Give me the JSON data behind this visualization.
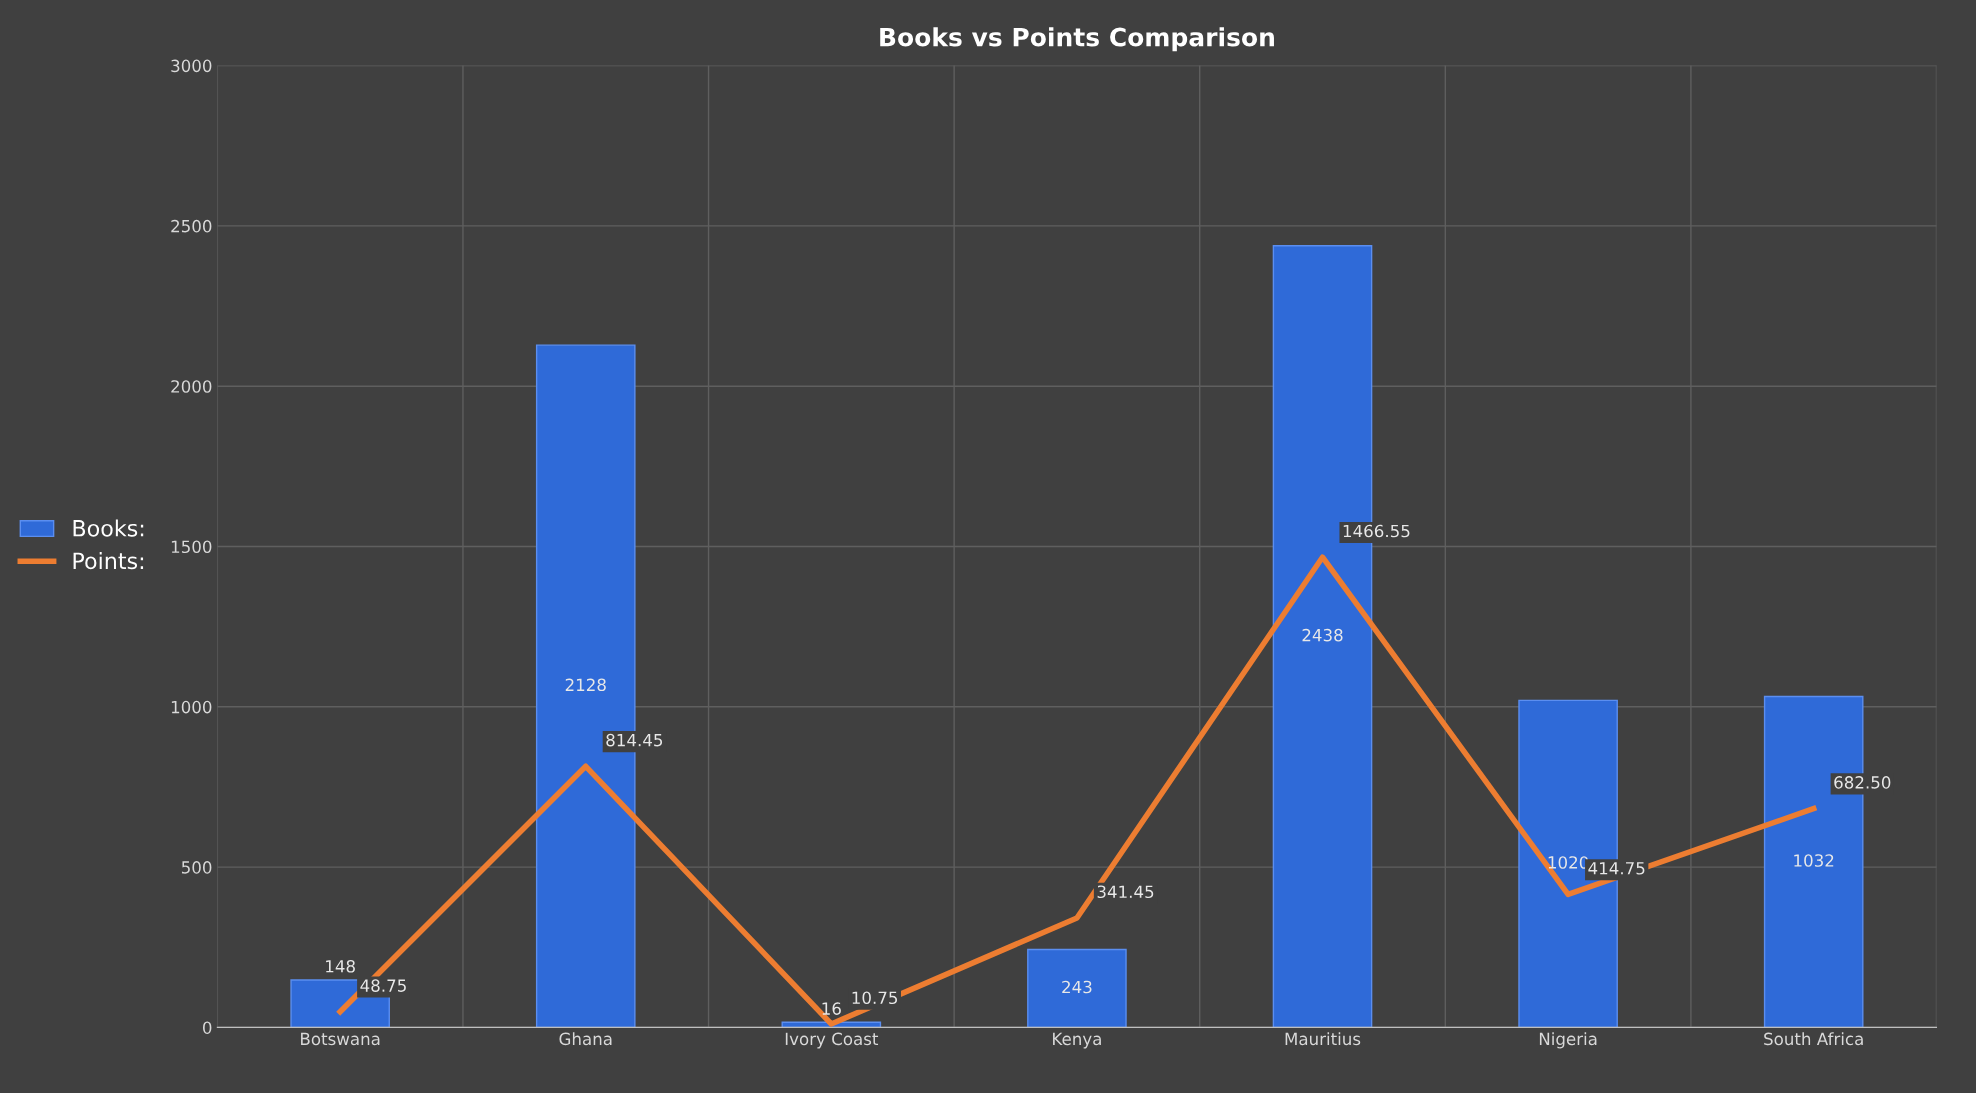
{
  "chart_data": {
    "type": "bar",
    "title": "Books vs Points Comparison",
    "categories": [
      "Botswana",
      "Ghana",
      "Ivory Coast",
      "Kenya",
      "Mauritius",
      "Nigeria",
      "South Africa"
    ],
    "series": [
      {
        "name": "Books:",
        "color": "#2f6ad8",
        "values": [
          148,
          2128,
          16,
          243,
          2438,
          1020,
          1032
        ],
        "value_labels": [
          "148",
          "2128",
          "16",
          "243",
          "2438",
          "1020",
          "1032"
        ]
      },
      {
        "name": "Points:",
        "type": "line",
        "color": "#ed7d31",
        "values": [
          48.75,
          814.45,
          10.75,
          341.45,
          1466.55,
          414.75,
          682.5
        ],
        "value_labels": [
          "48.75",
          "814.45",
          "10.75",
          "341.45",
          "1466.55",
          "414.75",
          "682.50"
        ]
      }
    ],
    "ylim": [
      0,
      3000
    ],
    "yticks": [
      0,
      500,
      1000,
      1500,
      2000,
      2500,
      3000
    ],
    "grid": true,
    "legend": "left",
    "marker": "none",
    "line_style": "solid"
  }
}
